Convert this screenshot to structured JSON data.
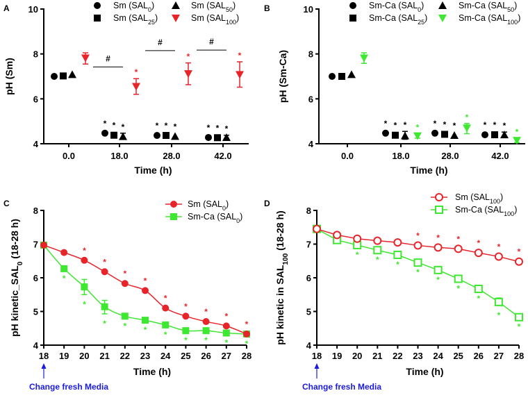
{
  "colors": {
    "black": "#000000",
    "red": "#e8242b",
    "green": "#3ee830",
    "blue": "#1a1ae0"
  },
  "chart_data": [
    {
      "panel": "A",
      "type": "scatter",
      "xlabel": "Time (h)",
      "ylabel": "pH (Sm)",
      "ylim": [
        4,
        10
      ],
      "yticks": [
        4,
        6,
        8,
        10
      ],
      "categories": [
        "0.0",
        "18.0",
        "28.0",
        "42.0"
      ],
      "series": [
        {
          "name": "Sm (SAL0)",
          "label": {
            "base": "Sm (SAL",
            "sub": "0",
            "end": ")"
          },
          "marker": "circle",
          "color": "#000000",
          "values": [
            7.0,
            4.47,
            4.37,
            4.28
          ],
          "err": [
            null,
            null,
            null,
            null
          ],
          "stars": [
            false,
            true,
            true,
            true
          ]
        },
        {
          "name": "Sm (SAL25)",
          "label": {
            "base": "Sm (SAL",
            "sub": "25",
            "end": ")"
          },
          "marker": "square",
          "color": "#000000",
          "values": [
            7.02,
            4.38,
            4.37,
            4.27
          ],
          "err": [
            null,
            null,
            null,
            null
          ],
          "stars": [
            false,
            true,
            true,
            true
          ]
        },
        {
          "name": "Sm (SAL50)",
          "label": {
            "base": "Sm (SAL",
            "sub": "50",
            "end": ")"
          },
          "marker": "triangle",
          "color": "#000000",
          "values": [
            7.08,
            4.32,
            4.33,
            4.28
          ],
          "err": [
            null,
            [
              4.2,
              4.47
            ],
            null,
            [
              4.2,
              4.38
            ]
          ],
          "stars": [
            false,
            true,
            true,
            true
          ]
        },
        {
          "name": "Sm (SAL100)",
          "label": {
            "base": "Sm (SAL",
            "sub": "100",
            "end": ")"
          },
          "marker": "invtriangle",
          "color": "#e8242b",
          "values": [
            7.82,
            6.55,
            7.12,
            7.08
          ],
          "err": [
            [
              7.55,
              8.05
            ],
            [
              6.2,
              6.9
            ],
            [
              6.63,
              7.6
            ],
            [
              6.52,
              7.65
            ]
          ],
          "stars": [
            false,
            true,
            true,
            true
          ]
        }
      ],
      "significance": [
        {
          "category": "18.0",
          "symbol": "#",
          "y": 7.42
        },
        {
          "category": "28.0",
          "symbol": "#",
          "y": 8.15
        },
        {
          "category": "42.0",
          "symbol": "#",
          "y": 8.17
        }
      ],
      "legend": "top"
    },
    {
      "panel": "B",
      "type": "scatter",
      "xlabel": "Time (h)",
      "ylabel": "pH (Sm-Ca)",
      "ylim": [
        4,
        10
      ],
      "yticks": [
        4,
        6,
        8,
        10
      ],
      "categories": [
        "0.0",
        "18.0",
        "28.0",
        "42.0"
      ],
      "series": [
        {
          "name": "Sm-Ca (SAL0)",
          "label": {
            "base": "Sm-Ca (SAL",
            "sub": "0",
            "end": ")"
          },
          "marker": "circle",
          "color": "#000000",
          "values": [
            7.0,
            4.47,
            4.47,
            4.4
          ],
          "err": [
            null,
            null,
            null,
            null
          ],
          "stars": [
            false,
            true,
            true,
            true
          ]
        },
        {
          "name": "Sm-Ca (SAL25)",
          "label": {
            "base": "Sm-Ca (SAL",
            "sub": "25",
            "end": ")"
          },
          "marker": "square",
          "color": "#000000",
          "values": [
            7.0,
            4.38,
            4.42,
            4.4
          ],
          "err": [
            null,
            null,
            null,
            null
          ],
          "stars": [
            false,
            true,
            true,
            true
          ]
        },
        {
          "name": "Sm-Ca (SAL50)",
          "label": {
            "base": "Sm-Ca (SAL",
            "sub": "50",
            "end": ")"
          },
          "marker": "triangle",
          "color": "#000000",
          "values": [
            7.08,
            4.35,
            4.37,
            4.4
          ],
          "err": [
            null,
            [
              4.2,
              4.55
            ],
            null,
            [
              4.3,
              4.52
            ]
          ],
          "stars": [
            false,
            true,
            true,
            true
          ]
        },
        {
          "name": "Sm-Ca (SAL100)",
          "label": {
            "base": "Sm-Ca (SAL",
            "sub": "100",
            "end": ")"
          },
          "marker": "invtriangle",
          "color": "#3ee830",
          "values": [
            7.82,
            4.35,
            4.7,
            4.15
          ],
          "err": [
            [
              7.58,
              8.05
            ],
            [
              4.25,
              4.45
            ],
            [
              4.45,
              4.9
            ],
            [
              4.05,
              4.25
            ]
          ],
          "stars": [
            false,
            true,
            true,
            true
          ]
        }
      ],
      "significance": [],
      "legend": "top"
    },
    {
      "panel": "C",
      "type": "line",
      "xlabel": "Time (h)",
      "ylabel": {
        "base": "pH kinetic_SAL",
        "sub": "0",
        "end": " (18-28 h)"
      },
      "ylim": [
        4,
        8
      ],
      "yticks": [
        4,
        5,
        6,
        7,
        8
      ],
      "xlim": [
        18,
        28
      ],
      "x": [
        18,
        19,
        20,
        21,
        22,
        23,
        24,
        25,
        26,
        27,
        28
      ],
      "series": [
        {
          "name": "Sm (SAL0)",
          "label": {
            "base": "Sm (SAL",
            "sub": "0",
            "end": ")"
          },
          "marker": "circle",
          "color": "#e8242b",
          "star_pos": "above",
          "values": [
            6.97,
            6.75,
            6.52,
            6.18,
            5.83,
            5.62,
            5.1,
            4.86,
            4.7,
            4.57,
            4.33
          ],
          "err": [
            null,
            null,
            null,
            null,
            null,
            null,
            null,
            null,
            null,
            null,
            null
          ],
          "stars": [
            false,
            false,
            true,
            true,
            true,
            true,
            true,
            true,
            true,
            true,
            true
          ]
        },
        {
          "name": "Sm-Ca (SAL0)",
          "label": {
            "base": "Sm-Ca (SAL",
            "sub": "0",
            "end": ")"
          },
          "marker": "square",
          "color": "#3ee830",
          "star_pos": "below",
          "values": [
            6.97,
            6.27,
            5.73,
            5.14,
            4.86,
            4.74,
            4.6,
            4.43,
            4.43,
            4.36,
            4.33
          ],
          "err": [
            null,
            null,
            [
              5.5,
              5.95
            ],
            [
              4.93,
              5.33
            ],
            null,
            null,
            null,
            null,
            null,
            null,
            null
          ],
          "stars": [
            false,
            true,
            true,
            true,
            true,
            true,
            true,
            true,
            true,
            true,
            true
          ]
        }
      ],
      "annotation": {
        "text": "Change fresh Media",
        "x": 18
      },
      "legend": "top-right"
    },
    {
      "panel": "D",
      "type": "line",
      "xlabel": "Time (h)",
      "ylabel": {
        "base": "pH kinetic in SAL",
        "sub": "100",
        "end": " (18-28 h)"
      },
      "ylim": [
        4,
        8
      ],
      "yticks": [
        4,
        5,
        6,
        7,
        8
      ],
      "xlim": [
        18,
        28
      ],
      "x": [
        18,
        19,
        20,
        21,
        22,
        23,
        24,
        25,
        26,
        27,
        28
      ],
      "series": [
        {
          "name": "Sm (SAL100)",
          "label": {
            "base": "Sm (SAL",
            "sub": "100",
            "end": ")"
          },
          "marker": "opencircle",
          "color": "#e8242b",
          "star_pos": "above",
          "values": [
            7.45,
            7.27,
            7.16,
            7.1,
            7.05,
            6.96,
            6.9,
            6.86,
            6.74,
            6.63,
            6.48
          ],
          "err": [
            null,
            null,
            null,
            null,
            null,
            null,
            null,
            null,
            null,
            null,
            null
          ],
          "stars": [
            false,
            false,
            false,
            false,
            false,
            true,
            true,
            true,
            true,
            true,
            true
          ]
        },
        {
          "name": "Sm-Ca (SAL100)",
          "label": {
            "base": "Sm-Ca (SAL",
            "sub": "100",
            "end": ")"
          },
          "marker": "opensquare",
          "color": "#3ee830",
          "star_pos": "below",
          "values": [
            7.45,
            7.12,
            6.97,
            6.82,
            6.68,
            6.45,
            6.23,
            5.97,
            5.67,
            5.28,
            4.83
          ],
          "err": [
            null,
            null,
            null,
            null,
            null,
            null,
            null,
            null,
            null,
            [
              5.18,
              5.4
            ],
            null
          ],
          "stars": [
            false,
            false,
            true,
            true,
            true,
            true,
            true,
            true,
            true,
            true,
            true
          ]
        }
      ],
      "annotation": {
        "text": "Change fresh Media",
        "x": 18
      },
      "legend": "top-right"
    }
  ]
}
